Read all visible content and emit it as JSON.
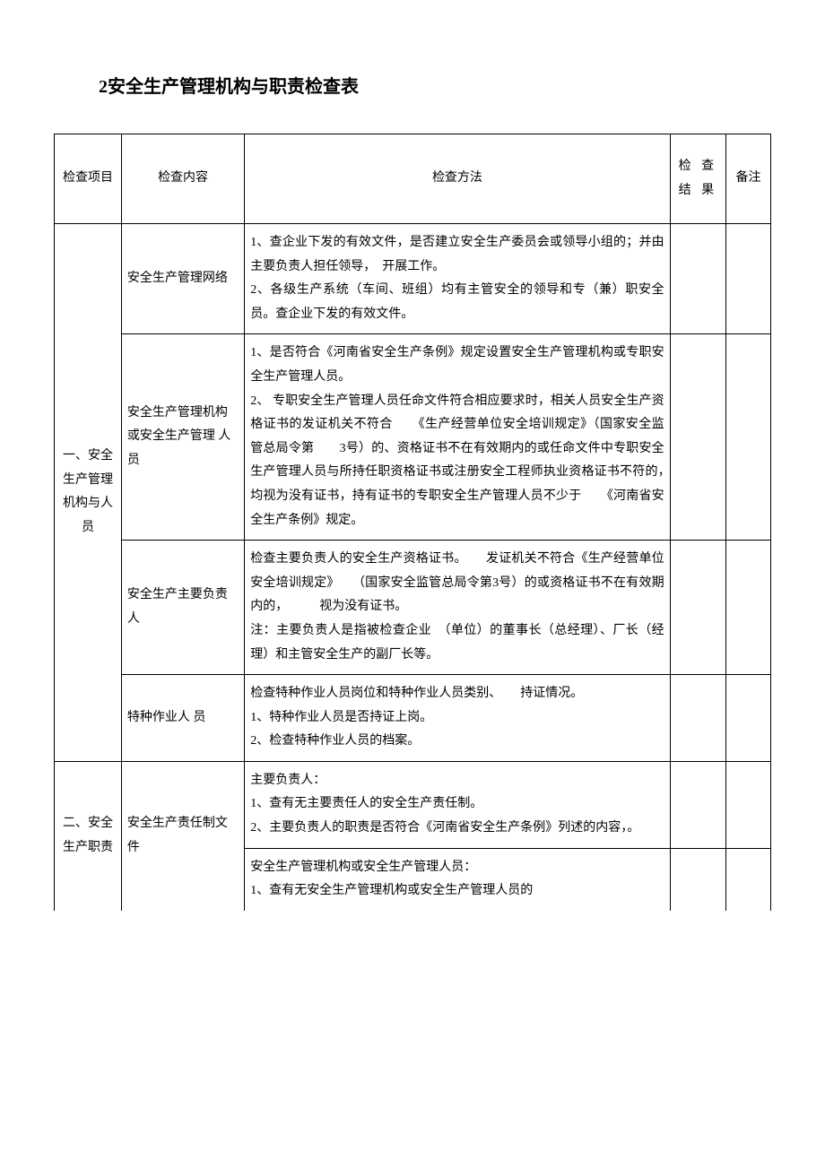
{
  "title": "2安全生产管理机构与职责检查表",
  "headers": {
    "project": "检查项目",
    "content": "检查内容",
    "method": "检查方法",
    "result": "检 查结 果",
    "note": "备注"
  },
  "sections": [
    {
      "project": "一、安全生产管理机构与人员",
      "rows": [
        {
          "content": "安全生产管理网络",
          "method": "1、查企业下发的有效文件，是否建立安全生产委员会或领导小组的；并由主要负责人担任领导，　开展工作。\n2、各级生产系统（车间、班组）均有主管安全的领导和专（兼）职安全员。查企业下发的有效文件。"
        },
        {
          "content": "安全生产管理机构或安全生产管理 人员",
          "method": "1、是否符合《河南省安全生产条例》规定设置安全生产管理机构或专职安全生产管理人员。\n2、 专职安全生产管理人员任命文件符合相应要求时，相关人员安全生产资格证书的发证机关不符合　　《生产经营单位安全培训规定》（国家安全监管总局令第　　3号）的、资格证书不在有效期内的或任命文件中专职安全生产管理人员与所持任职资格证书或注册安全工程师执业资格证书不符的，　均视为没有证书，持有证书的专职安全生产管理人员不少于　　《河南省安全生产条例》规定。"
        },
        {
          "content": "安全生产主要负责人",
          "method": "检查主要负责人的安全生产资格证书。　　发证机关不符合《生产经营单位安全培训规定》　　（国家安全监管总局令第3号）的或资格证书不在有效期内的，　　　视为没有证书。\n注：主要负责人是指被检查企业　（单位）的董事长（总经理）、厂长（经理）和主管安全生产的副厂长等。"
        },
        {
          "content": "特种作业人 员",
          "method": "检查特种作业人员岗位和特种作业人员类别、　　持证情况。\n1、特种作业人员是否持证上岗。\n2、检查特种作业人员的档案。"
        }
      ]
    },
    {
      "project": "二、安全生产职责",
      "rows": [
        {
          "content": "安全生产责任制文件",
          "method1": "主要负责人：\n1、查有无主要责任人的安全生产责任制。\n2、主要负责人的职责是否符合《河南省安全生产条例》列述的内容，。",
          "method2": "安全生产管理机构或安全生产管理人员：\n1、查有无安全生产管理机构或安全生产管理人员的"
        }
      ]
    }
  ]
}
